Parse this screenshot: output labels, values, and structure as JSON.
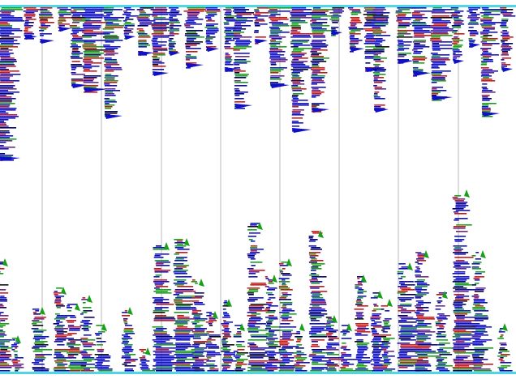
{
  "visualization": {
    "background_color": "#ffffff",
    "frame_color": "#4fd6e6",
    "grid_line_color": "#b8b8b8",
    "column_count": 9,
    "palette": [
      "#1010c8",
      "#c81818",
      "#18a018",
      "#000070",
      "#6a2a8a",
      "#0a0a0a"
    ]
  }
}
